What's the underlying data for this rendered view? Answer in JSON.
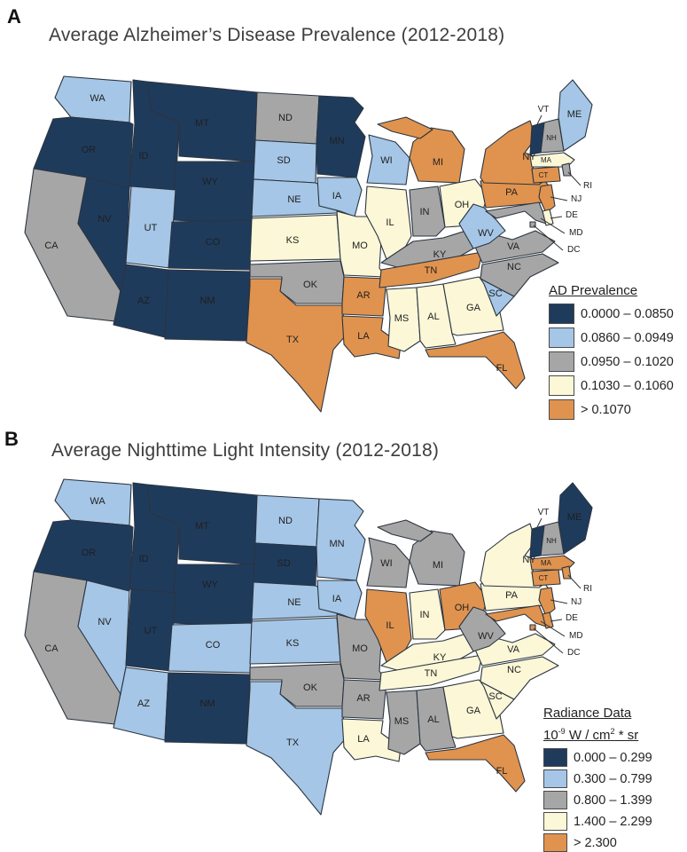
{
  "colors": {
    "c1": "#1F3B5C",
    "c2": "#A5C6E6",
    "c3": "#A6A6A6",
    "c4": "#FBF7D7",
    "c5": "#E0934E"
  },
  "panels": [
    {
      "id": "A",
      "label": "A",
      "title": "Average Alzheimer’s Disease Prevalence (2012-2018)",
      "legend": {
        "title": "AD Prevalence",
        "classes": [
          {
            "key": "c1",
            "label": "0.0000 – 0.0850"
          },
          {
            "key": "c2",
            "label": "0.0860 – 0.0949"
          },
          {
            "key": "c3",
            "label": "0.0950 – 0.1020"
          },
          {
            "key": "c4",
            "label": "0.1030 – 0.1060"
          },
          {
            "key": "c5",
            "label": "> 0.1070"
          }
        ]
      },
      "states": {
        "WA": "c2",
        "OR": "c1",
        "CA": "c3",
        "NV": "c1",
        "ID": "c1",
        "MT": "c1",
        "WY": "c1",
        "UT": "c2",
        "CO": "c1",
        "AZ": "c1",
        "NM": "c1",
        "ND": "c3",
        "SD": "c2",
        "NE": "c2",
        "KS": "c4",
        "OK": "c3",
        "TX": "c5",
        "MN": "c1",
        "IA": "c2",
        "MO": "c4",
        "AR": "c5",
        "LA": "c5",
        "WI": "c2",
        "IL": "c4",
        "IN": "c3",
        "MI": "c5",
        "OH": "c4",
        "KY": "c3",
        "TN": "c5",
        "MS": "c4",
        "AL": "c4",
        "GA": "c4",
        "FL": "c5",
        "SC": "c2",
        "NC": "c3",
        "VA": "c3",
        "WV": "c2",
        "PA": "c5",
        "NY": "c5",
        "NJ": "c5",
        "CT": "c5",
        "RI": "c3",
        "MA": "c4",
        "DE": "c4",
        "MD": "c3",
        "DC": "c3",
        "VT": "c1",
        "NH": "c3",
        "ME": "c2"
      }
    },
    {
      "id": "B",
      "label": "B",
      "title": "Average Nighttime Light Intensity (2012-2018)",
      "legend": {
        "title": "Radiance Data",
        "unit": {
          "base": "10",
          "exp1": "-9",
          "mid": " W / cm",
          "exp2": "2",
          "tail": " * sr"
        },
        "classes": [
          {
            "key": "c1",
            "label": "0.000 – 0.299"
          },
          {
            "key": "c2",
            "label": "0.300 – 0.799"
          },
          {
            "key": "c3",
            "label": "0.800 – 1.399"
          },
          {
            "key": "c4",
            "label": "1.400 – 2.299"
          },
          {
            "key": "c5",
            "label": "> 2.300"
          }
        ]
      },
      "states": {
        "WA": "c2",
        "OR": "c1",
        "CA": "c3",
        "NV": "c2",
        "ID": "c1",
        "MT": "c1",
        "WY": "c1",
        "UT": "c1",
        "CO": "c2",
        "AZ": "c2",
        "NM": "c1",
        "ND": "c2",
        "SD": "c1",
        "NE": "c2",
        "KS": "c2",
        "OK": "c3",
        "TX": "c2",
        "MN": "c2",
        "IA": "c2",
        "MO": "c3",
        "AR": "c3",
        "LA": "c4",
        "WI": "c3",
        "IL": "c5",
        "IN": "c4",
        "MI": "c3",
        "OH": "c5",
        "KY": "c4",
        "TN": "c4",
        "MS": "c3",
        "AL": "c3",
        "GA": "c4",
        "FL": "c5",
        "SC": "c4",
        "NC": "c4",
        "VA": "c4",
        "WV": "c3",
        "PA": "c4",
        "NY": "c4",
        "NJ": "c5",
        "CT": "c5",
        "RI": "c5",
        "MA": "c5",
        "DE": "c5",
        "MD": "c5",
        "DC": "c5",
        "VT": "c1",
        "NH": "c3",
        "ME": "c1"
      }
    }
  ]
}
